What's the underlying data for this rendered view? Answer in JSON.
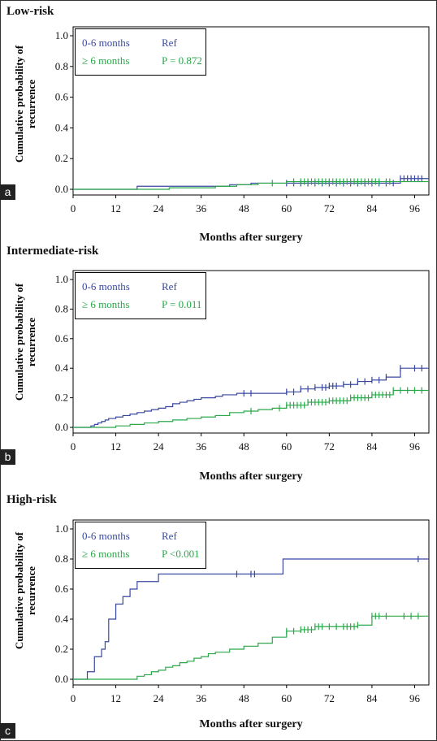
{
  "colors": {
    "group_a": "#3848a0",
    "group_b": "#2aa84a",
    "axis": "#000000"
  },
  "chart_data": [
    {
      "type": "line",
      "panel_label": "a",
      "title": "Low-risk",
      "xlabel": "Months after surgery",
      "ylabel": "Cumulative probability of recurrence",
      "xlim": [
        0,
        100
      ],
      "ylim": [
        0,
        1.0
      ],
      "xticks": [
        0,
        12,
        24,
        36,
        48,
        60,
        72,
        84,
        96
      ],
      "yticks": [
        "0.0",
        "0.2",
        "0.4",
        "0.6",
        "0.8",
        "1.0"
      ],
      "legend": [
        {
          "name": "0-6 months",
          "stat": "Ref"
        },
        {
          "name": "≥ 6 months",
          "stat": "P = 0.872"
        }
      ],
      "series": [
        {
          "name": "0-6 months",
          "color": "group_a",
          "x": [
            0,
            17,
            18,
            30,
            44,
            50,
            60,
            91,
            92,
            100
          ],
          "y": [
            0,
            0,
            0.02,
            0.02,
            0.03,
            0.04,
            0.04,
            0.04,
            0.07,
            0.07
          ],
          "censor_x": [
            60,
            62,
            64,
            66,
            68,
            70,
            72,
            74,
            76,
            78,
            80,
            82,
            84,
            86,
            88,
            90,
            92,
            93,
            94,
            95,
            96,
            97,
            98
          ]
        },
        {
          "name": "≥ 6 months",
          "color": "group_b",
          "x": [
            0,
            26,
            27,
            40,
            46,
            52,
            60,
            88,
            100
          ],
          "y": [
            0,
            0,
            0.01,
            0.02,
            0.03,
            0.04,
            0.05,
            0.05,
            0.05
          ],
          "censor_x": [
            56,
            62,
            64,
            65,
            66,
            67,
            68,
            69,
            70,
            71,
            72,
            73,
            74,
            75,
            76,
            77,
            78,
            79,
            80,
            81,
            82,
            83,
            84,
            85,
            86,
            88,
            89
          ]
        }
      ]
    },
    {
      "type": "line",
      "panel_label": "b",
      "title": "Intermediate-risk",
      "xlabel": "Months after surgery",
      "ylabel": "Cumulative probability of recurrence",
      "xlim": [
        0,
        100
      ],
      "ylim": [
        0,
        1.0
      ],
      "xticks": [
        0,
        12,
        24,
        36,
        48,
        60,
        72,
        84,
        96
      ],
      "yticks": [
        "0.0",
        "0.2",
        "0.4",
        "0.6",
        "0.8",
        "1.0"
      ],
      "legend": [
        {
          "name": "0-6 months",
          "stat": "Ref"
        },
        {
          "name": "≥ 6 months",
          "stat": "P = 0.011"
        }
      ],
      "series": [
        {
          "name": "0-6 months",
          "color": "group_a",
          "x": [
            0,
            4,
            5,
            6,
            7,
            8,
            9,
            10,
            12,
            14,
            16,
            18,
            20,
            22,
            24,
            26,
            28,
            30,
            32,
            34,
            36,
            38,
            40,
            42,
            44,
            46,
            48,
            52,
            56,
            60,
            64,
            68,
            72,
            76,
            80,
            84,
            88,
            92,
            100
          ],
          "y": [
            0,
            0,
            0.01,
            0.02,
            0.03,
            0.04,
            0.05,
            0.06,
            0.07,
            0.08,
            0.09,
            0.1,
            0.11,
            0.12,
            0.13,
            0.14,
            0.16,
            0.17,
            0.18,
            0.19,
            0.2,
            0.2,
            0.21,
            0.22,
            0.22,
            0.23,
            0.23,
            0.23,
            0.23,
            0.24,
            0.26,
            0.27,
            0.28,
            0.29,
            0.31,
            0.32,
            0.34,
            0.4,
            0.4
          ],
          "censor_x": [
            48,
            50,
            60,
            62,
            64,
            66,
            68,
            70,
            71,
            72,
            73,
            74,
            76,
            78,
            80,
            82,
            84,
            86,
            88,
            92,
            96,
            98
          ]
        },
        {
          "name": "≥ 6 months",
          "color": "group_b",
          "x": [
            0,
            11,
            12,
            16,
            20,
            24,
            28,
            32,
            36,
            40,
            44,
            48,
            52,
            56,
            60,
            66,
            72,
            78,
            84,
            90,
            100
          ],
          "y": [
            0,
            0,
            0.01,
            0.02,
            0.03,
            0.04,
            0.05,
            0.06,
            0.07,
            0.08,
            0.1,
            0.11,
            0.12,
            0.13,
            0.15,
            0.17,
            0.18,
            0.2,
            0.22,
            0.25,
            0.25
          ],
          "censor_x": [
            50,
            58,
            60,
            61,
            62,
            63,
            64,
            65,
            66,
            67,
            68,
            69,
            70,
            71,
            72,
            73,
            74,
            75,
            76,
            77,
            78,
            79,
            80,
            81,
            82,
            83,
            84,
            85,
            86,
            87,
            88,
            89,
            90,
            92,
            94,
            96,
            98
          ]
        }
      ]
    },
    {
      "type": "line",
      "panel_label": "c",
      "title": "High-risk",
      "xlabel": "Months after surgery",
      "ylabel": "Cumulative probability of recurrence",
      "xlim": [
        0,
        100
      ],
      "ylim": [
        0,
        1.0
      ],
      "xticks": [
        0,
        12,
        24,
        36,
        48,
        60,
        72,
        84,
        96
      ],
      "yticks": [
        "0.0",
        "0.2",
        "0.4",
        "0.6",
        "0.8",
        "1.0"
      ],
      "legend": [
        {
          "name": "0-6 months",
          "stat": "Ref"
        },
        {
          "name": "≥ 6 months",
          "stat": "P <0.001"
        }
      ],
      "series": [
        {
          "name": "0-6 months",
          "color": "group_a",
          "x": [
            0,
            3,
            4,
            6,
            8,
            9,
            10,
            12,
            14,
            16,
            18,
            20,
            24,
            30,
            36,
            58,
            59,
            100
          ],
          "y": [
            0,
            0,
            0.05,
            0.15,
            0.2,
            0.25,
            0.4,
            0.5,
            0.55,
            0.6,
            0.65,
            0.65,
            0.7,
            0.7,
            0.7,
            0.7,
            0.8,
            0.8
          ],
          "censor_x": [
            46,
            50,
            51,
            97
          ]
        },
        {
          "name": "≥ 6 months",
          "color": "group_b",
          "x": [
            0,
            17,
            18,
            20,
            22,
            24,
            26,
            28,
            30,
            32,
            34,
            36,
            38,
            40,
            44,
            48,
            52,
            56,
            60,
            64,
            68,
            72,
            76,
            80,
            84,
            100
          ],
          "y": [
            0,
            0,
            0.02,
            0.03,
            0.05,
            0.06,
            0.08,
            0.09,
            0.11,
            0.12,
            0.14,
            0.15,
            0.17,
            0.18,
            0.2,
            0.22,
            0.24,
            0.28,
            0.32,
            0.33,
            0.35,
            0.35,
            0.35,
            0.36,
            0.42,
            0.42
          ],
          "censor_x": [
            60,
            62,
            64,
            65,
            66,
            67,
            68,
            69,
            70,
            72,
            74,
            76,
            77,
            78,
            79,
            80,
            84,
            85,
            86,
            88,
            93,
            95,
            97
          ]
        }
      ]
    }
  ]
}
